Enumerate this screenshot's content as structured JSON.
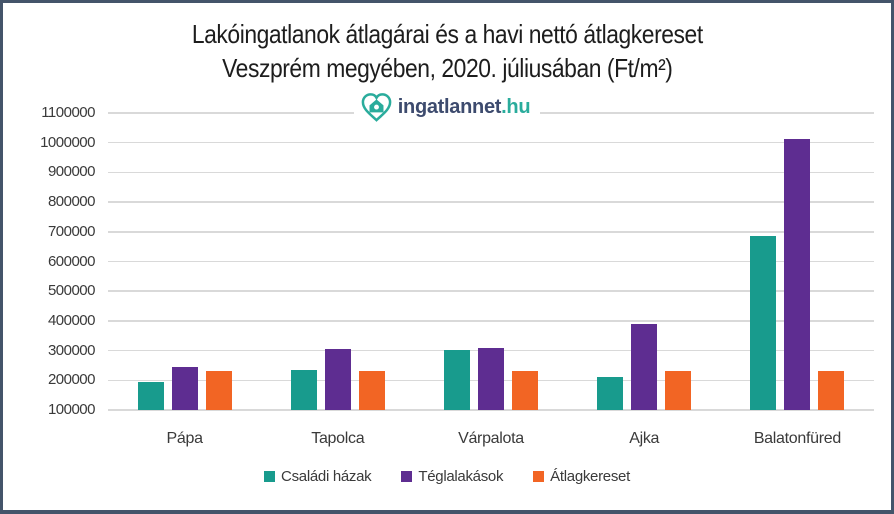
{
  "frame": {
    "border_color": "#44546A",
    "background_color": "#FFFFFF"
  },
  "title": {
    "line1": "Lakóingatlanok átlagárai és a havi nettó átlagkereset",
    "line2": "Veszprém megyében, 2020. júliusában (Ft/m²)"
  },
  "logo": {
    "name": "ingatlannet",
    "tld": ".hu",
    "icon": "heart-house-icon",
    "text_color": "#3D4B6E",
    "accent_color": "#2AAC9C"
  },
  "chart_data": {
    "type": "bar",
    "title": "Lakóingatlanok átlagárai és a havi nettó átlagkereset Veszprém megyében, 2020. júliusában (Ft/m²)",
    "categories": [
      "Pápa",
      "Tapolca",
      "Várpalota",
      "Ajka",
      "Balatonfüred"
    ],
    "series": [
      {
        "name": "Családi házak",
        "color": "#189B8D",
        "values": [
          194000,
          235000,
          303000,
          212000,
          685000
        ]
      },
      {
        "name": "Téglalakások",
        "color": "#5E2D91",
        "values": [
          245000,
          304000,
          310000,
          388000,
          1013000
        ]
      },
      {
        "name": "Átlagkereset",
        "color": "#F26524",
        "values": [
          233000,
          233000,
          233000,
          233000,
          233000
        ]
      }
    ],
    "xlabel": "",
    "ylabel": "",
    "ylim": [
      100000,
      1100000
    ],
    "ytick_step": 100000,
    "yticks": [
      1100000,
      1000000,
      900000,
      800000,
      700000,
      600000,
      500000,
      400000,
      300000,
      200000,
      100000
    ],
    "grid": true,
    "gridline_color": "#D9D9D9",
    "legend_position": "bottom"
  }
}
